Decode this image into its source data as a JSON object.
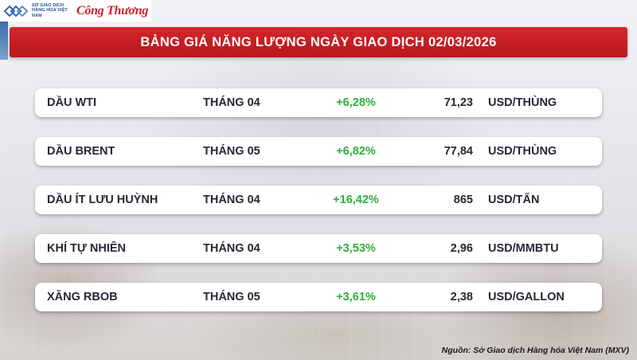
{
  "header": {
    "exchange_logo_text": "SỞ GIAO DỊCH HÀNG HÓA VIỆT NAM",
    "publisher_logo_text": "Công Thương",
    "title": "BẢNG GIÁ NĂNG LƯỢNG NGÀY GIAO DỊCH 02/03/2026"
  },
  "rows": [
    {
      "name": "DẦU WTI",
      "month": "THÁNG 04",
      "change": "+6,28%",
      "price": "71,23",
      "unit": "USD/THÙNG"
    },
    {
      "name": "DẦU BRENT",
      "month": "THÁNG 05",
      "change": "+6,82%",
      "price": "77,84",
      "unit": "USD/THÙNG"
    },
    {
      "name": "DẦU ÍT LƯU HUỲNH",
      "month": "THÁNG 04",
      "change": "+16,42%",
      "price": "865",
      "unit": "USD/TẤN"
    },
    {
      "name": "KHÍ TỰ NHIÊN",
      "month": "THÁNG 04",
      "change": "+3,53%",
      "price": "2,96",
      "unit": "USD/MMBTU"
    },
    {
      "name": "XĂNG RBOB",
      "month": "THÁNG 05",
      "change": "+3,61%",
      "price": "2,38",
      "unit": "USD/GALLON"
    }
  ],
  "footer": {
    "source": "Nguồn: Sở Giao dịch Hàng hóa Việt Nam (MXV)"
  },
  "colors": {
    "banner_red": "#c41f25",
    "positive_green": "#2fae3d",
    "logo_blue": "#1f4f8b"
  }
}
